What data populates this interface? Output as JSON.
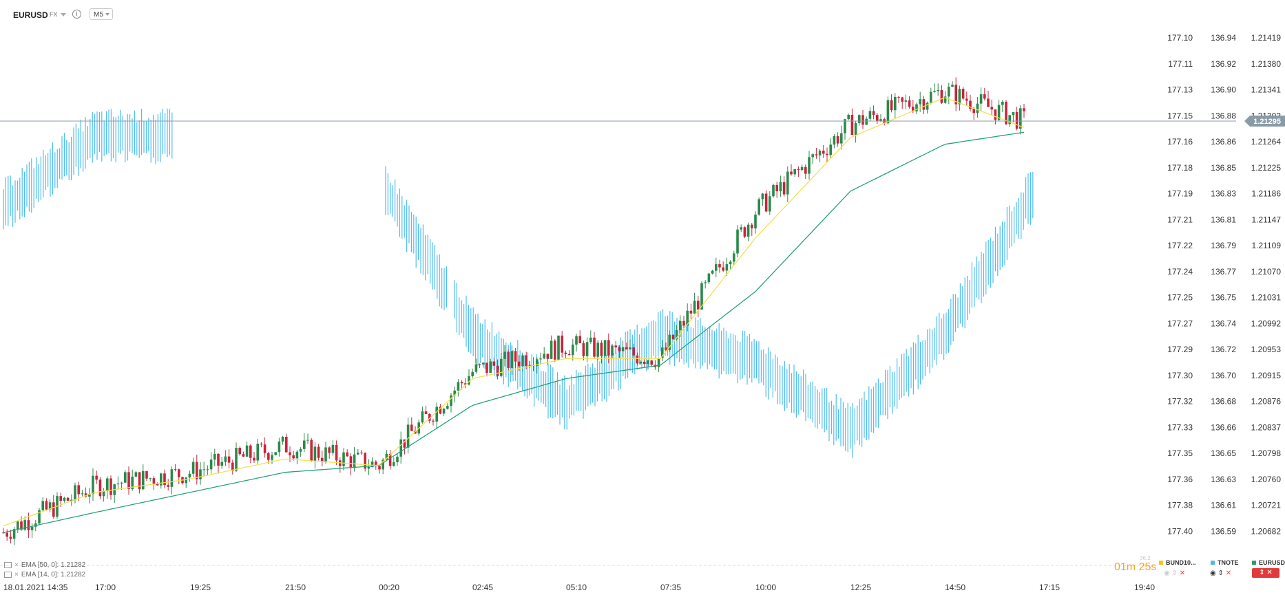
{
  "header": {
    "symbol": "EURUSD",
    "exchange": "FX",
    "info_icon": "info-icon",
    "timeframe": "M5"
  },
  "price_axes": {
    "axis_1": [
      "177.10",
      "177.11",
      "177.13",
      "177.15",
      "177.16",
      "177.18",
      "177.19",
      "177.21",
      "177.22",
      "177.24",
      "177.25",
      "177.27",
      "177.29",
      "177.30",
      "177.32",
      "177.33",
      "177.35",
      "177.36",
      "177.38",
      "177.40"
    ],
    "axis_2": [
      "136.94",
      "136.92",
      "136.90",
      "136.88",
      "136.86",
      "136.85",
      "136.83",
      "136.81",
      "136.79",
      "136.77",
      "136.75",
      "136.74",
      "136.72",
      "136.70",
      "136.68",
      "136.66",
      "136.65",
      "136.63",
      "136.61",
      "136.59"
    ],
    "axis_3": [
      "1.21419",
      "1.21380",
      "1.21341",
      "1.21302",
      "1.21264",
      "1.21225",
      "1.21186",
      "1.21147",
      "1.21109",
      "1.21070",
      "1.21031",
      "1.20992",
      "1.20953",
      "1.20915",
      "1.20876",
      "1.20837",
      "1.20798",
      "1.20760",
      "1.20721",
      "1.20682"
    ]
  },
  "current_price": "1.21295",
  "time_axis": [
    "18.01.2021  14:35",
    "17:00",
    "19:25",
    "21:50",
    "00:20",
    "02:45",
    "05:10",
    "07:35",
    "10:00",
    "12:25",
    "14:50",
    "17:15",
    "19:40"
  ],
  "indicators": [
    {
      "label": "EMA [50, 0]: 1.21282",
      "color": "#25a27a"
    },
    {
      "label": "EMA [14, 0]: 1.21282",
      "color": "#f5e050"
    }
  ],
  "countdown": {
    "value": "01m 25s",
    "small": "36.2"
  },
  "compare_symbols": [
    {
      "name": "BUND10...",
      "color": "#f5c518"
    },
    {
      "name": "TNOTE",
      "color": "#4db8e8"
    },
    {
      "name": "EURUSD",
      "color": "#2a9d6f"
    }
  ],
  "colors": {
    "up": "#2a8a4a",
    "down": "#c8243a",
    "tnote": "#4fbef0",
    "ema_slow": "#25a27a",
    "ema_fast": "#f5e050",
    "price_line": "#8a9ba8"
  },
  "chart_data": {
    "type": "line",
    "title": "",
    "xlabel": "",
    "ylabel": "",
    "x": [
      "14:35",
      "17:00",
      "19:25",
      "21:50",
      "00:20",
      "02:45",
      "05:10",
      "07:35",
      "10:00",
      "12:25",
      "14:50",
      "17:15"
    ],
    "series": [
      {
        "name": "EURUSD",
        "values": [
          1.2068,
          1.2075,
          1.2077,
          1.2081,
          1.2078,
          1.2092,
          1.2096,
          1.2094,
          1.2116,
          1.2129,
          1.2134,
          1.2129
        ]
      },
      {
        "name": "EMA [50, 0]",
        "values": [
          1.2068,
          1.2071,
          1.2074,
          1.2077,
          1.2078,
          1.2087,
          1.2091,
          1.2093,
          1.2104,
          1.2119,
          1.2126,
          1.2128
        ]
      },
      {
        "name": "EMA [14, 0]",
        "values": [
          1.2069,
          1.2074,
          1.2076,
          1.2079,
          1.2078,
          1.2091,
          1.2094,
          1.2094,
          1.2112,
          1.2127,
          1.2133,
          1.2128
        ]
      },
      {
        "name": "TNOTE",
        "values": [
          136.82,
          136.87,
          136.87,
          136.87,
          136.84,
          136.73,
          136.68,
          136.73,
          136.71,
          136.66,
          136.73,
          136.83
        ]
      }
    ],
    "ylim": [
      1.20682,
      1.21419
    ]
  }
}
